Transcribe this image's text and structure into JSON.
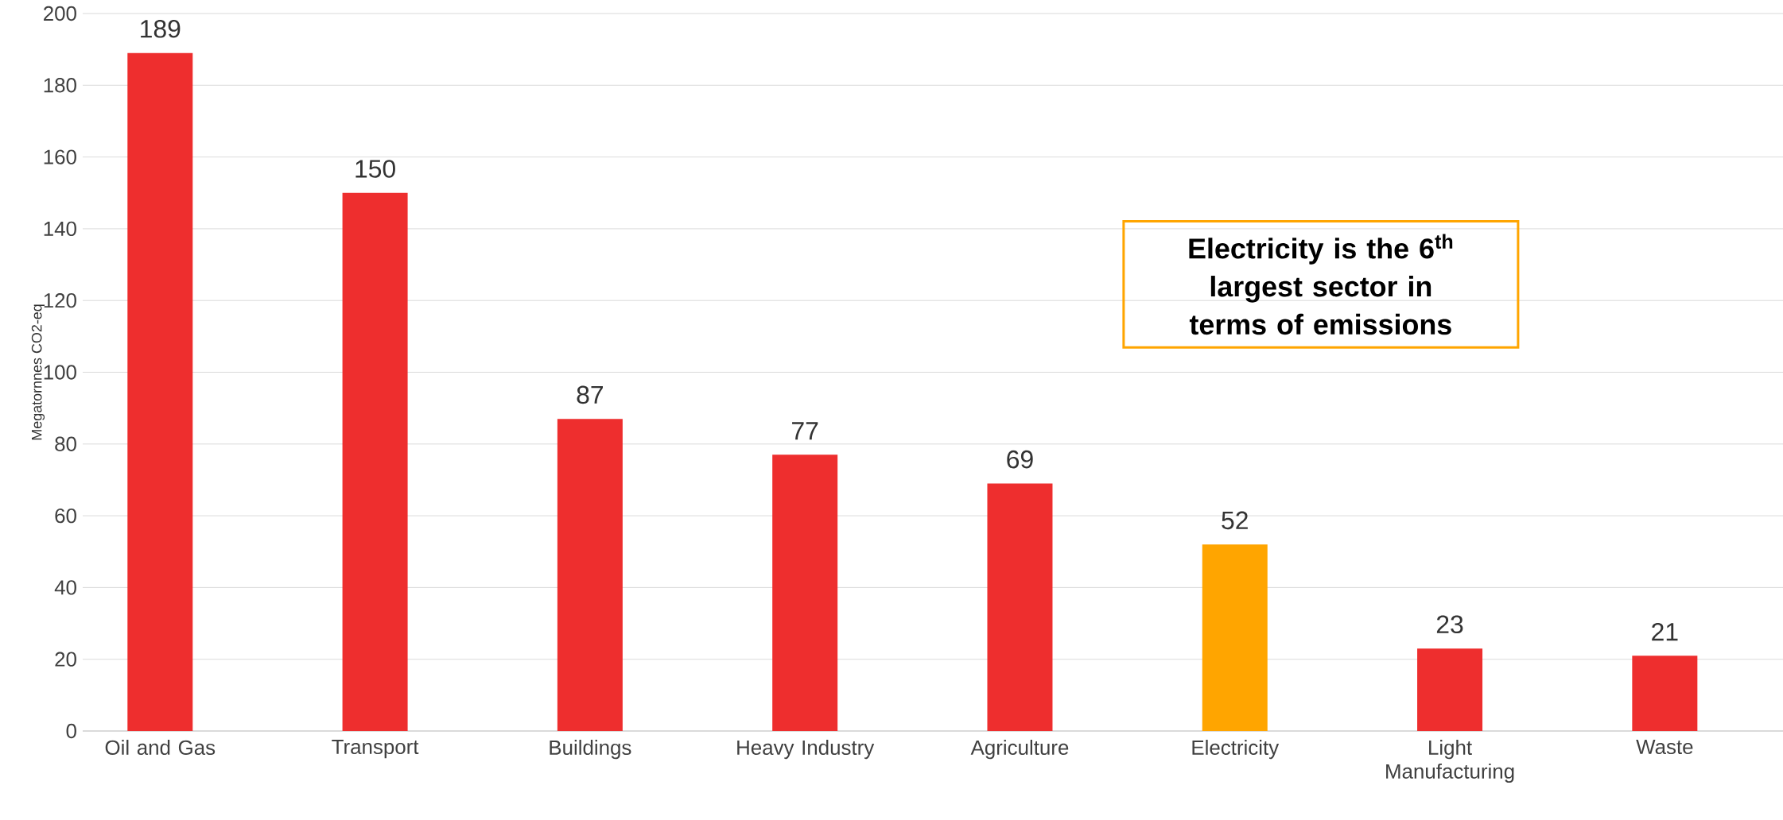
{
  "chart_data": {
    "type": "bar",
    "ylabel": "Megatornnes CO2-eq",
    "categories": [
      "Oil and Gas",
      "Transport",
      "Buildings",
      "Heavy Industry",
      "Agriculture",
      "Electricity",
      "Light Manufacturing",
      "Waste"
    ],
    "values": [
      189,
      150,
      87,
      77,
      69,
      52,
      23,
      21
    ],
    "colors": [
      "#ee2e2e",
      "#ee2e2e",
      "#ee2e2e",
      "#ee2e2e",
      "#ee2e2e",
      "#ffa500",
      "#ee2e2e",
      "#ee2e2e"
    ],
    "ylim": [
      0,
      200
    ],
    "yticks": [
      0,
      20,
      40,
      60,
      80,
      100,
      120,
      140,
      160,
      180,
      200
    ],
    "grid": "y",
    "data_labels": true,
    "annotations": [
      "**Electricity is the 6$^{th}$ largest sector in terms of emissions**"
    ]
  }
}
